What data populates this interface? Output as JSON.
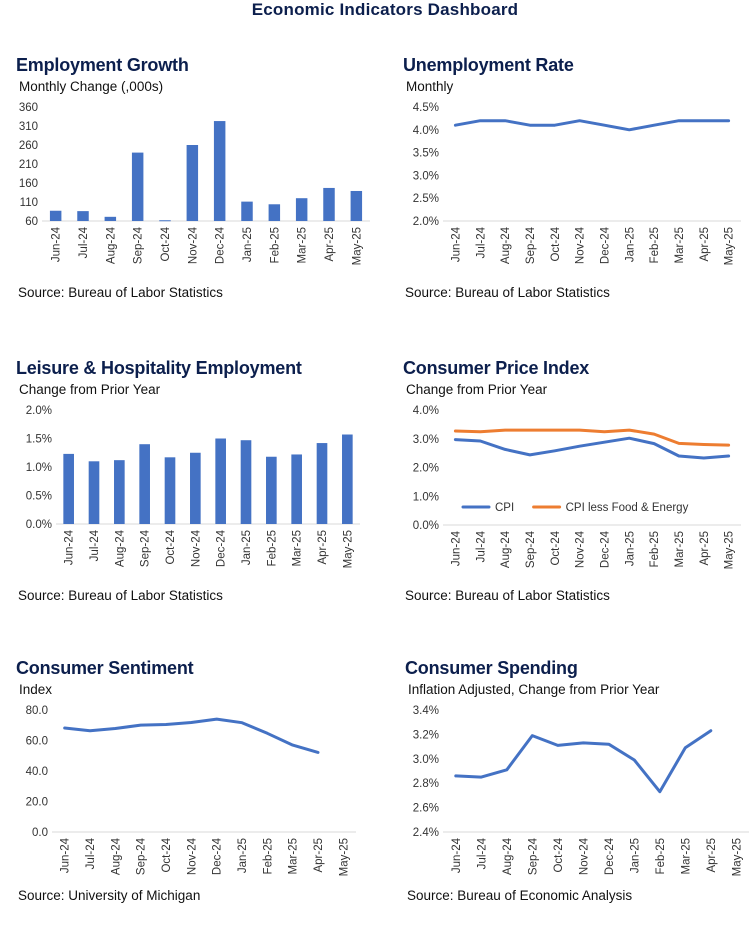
{
  "page": {
    "title": "Economic Indicators Dashboard"
  },
  "panels": [
    {
      "title": "Employment Growth",
      "subtitle": "Monthly Change (,000s)",
      "source": "Source: Bureau of Labor Statistics"
    },
    {
      "title": "Unemployment Rate",
      "subtitle": "Monthly",
      "source": "Source: Bureau of Labor Statistics"
    },
    {
      "title": "Leisure & Hospitality Employment",
      "subtitle": "Change from Prior Year",
      "source": "Source: Bureau of Labor Statistics"
    },
    {
      "title": "Consumer Price Index",
      "subtitle": "Change from Prior Year",
      "source": "Source: Bureau of Labor Statistics"
    },
    {
      "title": "Consumer Sentiment",
      "subtitle": "Index",
      "source": "Source: University of Michigan"
    },
    {
      "title": "Consumer Spending",
      "subtitle": "Inflation Adjusted, Change from Prior Year",
      "source": "Source: Bureau of Economic Analysis"
    }
  ],
  "chart_data": [
    {
      "type": "bar",
      "categories": [
        "Jun-24",
        "Jul-24",
        "Aug-24",
        "Sep-24",
        "Oct-24",
        "Nov-24",
        "Dec-24",
        "Jan-25",
        "Feb-25",
        "Mar-25",
        "Apr-25",
        "May-25"
      ],
      "series": [
        {
          "values": [
            87,
            86,
            71,
            240,
            62,
            260,
            323,
            111,
            104,
            120,
            147,
            139
          ],
          "color": "#4472c4"
        }
      ],
      "ylim": [
        60,
        360
      ],
      "yticks": [
        60,
        110,
        160,
        210,
        260,
        310,
        360
      ],
      "ytick_labels": [
        "60",
        "110",
        "160",
        "210",
        "260",
        "310",
        "360"
      ],
      "grid": false,
      "legend": null
    },
    {
      "type": "line",
      "categories": [
        "Jun-24",
        "Jul-24",
        "Aug-24",
        "Sep-24",
        "Oct-24",
        "Nov-24",
        "Dec-24",
        "Jan-25",
        "Feb-25",
        "Mar-25",
        "Apr-25",
        "May-25"
      ],
      "series": [
        {
          "values": [
            4.1,
            4.2,
            4.2,
            4.1,
            4.1,
            4.2,
            4.1,
            4.0,
            4.1,
            4.2,
            4.2,
            4.2
          ],
          "color": "#4472c4"
        }
      ],
      "ylim": [
        2.0,
        4.5
      ],
      "yticks": [
        2.0,
        2.5,
        3.0,
        3.5,
        4.0,
        4.5
      ],
      "ytick_labels": [
        "2.0%",
        "2.5%",
        "3.0%",
        "3.5%",
        "4.0%",
        "4.5%"
      ],
      "grid": false,
      "legend": null
    },
    {
      "type": "bar",
      "categories": [
        "Jun-24",
        "Jul-24",
        "Aug-24",
        "Sep-24",
        "Oct-24",
        "Nov-24",
        "Dec-24",
        "Jan-25",
        "Feb-25",
        "Mar-25",
        "Apr-25",
        "May-25"
      ],
      "series": [
        {
          "values": [
            1.23,
            1.1,
            1.12,
            1.4,
            1.17,
            1.25,
            1.5,
            1.47,
            1.18,
            1.22,
            1.42,
            1.57
          ],
          "color": "#4472c4"
        }
      ],
      "ylim": [
        0.0,
        2.0
      ],
      "yticks": [
        0.0,
        0.5,
        1.0,
        1.5,
        2.0
      ],
      "ytick_labels": [
        "0.0%",
        "0.5%",
        "1.0%",
        "1.5%",
        "2.0%"
      ],
      "grid": false,
      "legend": null
    },
    {
      "type": "line",
      "categories": [
        "Jun-24",
        "Jul-24",
        "Aug-24",
        "Sep-24",
        "Oct-24",
        "Nov-24",
        "Dec-24",
        "Jan-25",
        "Feb-25",
        "Mar-25",
        "Apr-25",
        "May-25"
      ],
      "series": [
        {
          "name": "CPI",
          "values": [
            2.97,
            2.92,
            2.63,
            2.44,
            2.58,
            2.74,
            2.88,
            3.02,
            2.83,
            2.4,
            2.33,
            2.4
          ],
          "color": "#4472c4"
        },
        {
          "name": "CPI less Food & Energy",
          "values": [
            3.27,
            3.24,
            3.3,
            3.3,
            3.3,
            3.3,
            3.24,
            3.3,
            3.16,
            2.84,
            2.8,
            2.78
          ],
          "color": "#ed7d31"
        }
      ],
      "ylim": [
        0.0,
        4.0
      ],
      "yticks": [
        0.0,
        1.0,
        2.0,
        3.0,
        4.0
      ],
      "ytick_labels": [
        "0.0%",
        "1.0%",
        "2.0%",
        "3.0%",
        "4.0%"
      ],
      "grid": false,
      "legend": "bottom"
    },
    {
      "type": "line",
      "categories": [
        "Jun-24",
        "Jul-24",
        "Aug-24",
        "Sep-24",
        "Oct-24",
        "Nov-24",
        "Dec-24",
        "Jan-25",
        "Feb-25",
        "Mar-25",
        "Apr-25",
        "May-25"
      ],
      "series": [
        {
          "values": [
            68.2,
            66.4,
            67.9,
            70.1,
            70.5,
            71.8,
            74.0,
            71.7,
            64.7,
            57.0,
            52.2,
            null
          ],
          "color": "#4472c4"
        }
      ],
      "ylim": [
        0.0,
        80.0
      ],
      "yticks": [
        0.0,
        20.0,
        40.0,
        60.0,
        80.0
      ],
      "ytick_labels": [
        "0.0",
        "20.0",
        "40.0",
        "60.0",
        "80.0"
      ],
      "grid": false,
      "legend": null
    },
    {
      "type": "line",
      "categories": [
        "Jun-24",
        "Jul-24",
        "Aug-24",
        "Sep-24",
        "Oct-24",
        "Nov-24",
        "Dec-24",
        "Jan-25",
        "Feb-25",
        "Mar-25",
        "Apr-25",
        "May-25"
      ],
      "series": [
        {
          "values": [
            2.86,
            2.85,
            2.91,
            3.19,
            3.11,
            3.13,
            3.12,
            2.99,
            2.73,
            3.09,
            3.23,
            null
          ],
          "color": "#4472c4"
        }
      ],
      "ylim": [
        2.4,
        3.4
      ],
      "yticks": [
        2.4,
        2.6,
        2.8,
        3.0,
        3.2,
        3.4
      ],
      "ytick_labels": [
        "2.4%",
        "2.6%",
        "2.8%",
        "3.0%",
        "3.2%",
        "3.4%"
      ],
      "grid": false,
      "legend": null
    }
  ]
}
